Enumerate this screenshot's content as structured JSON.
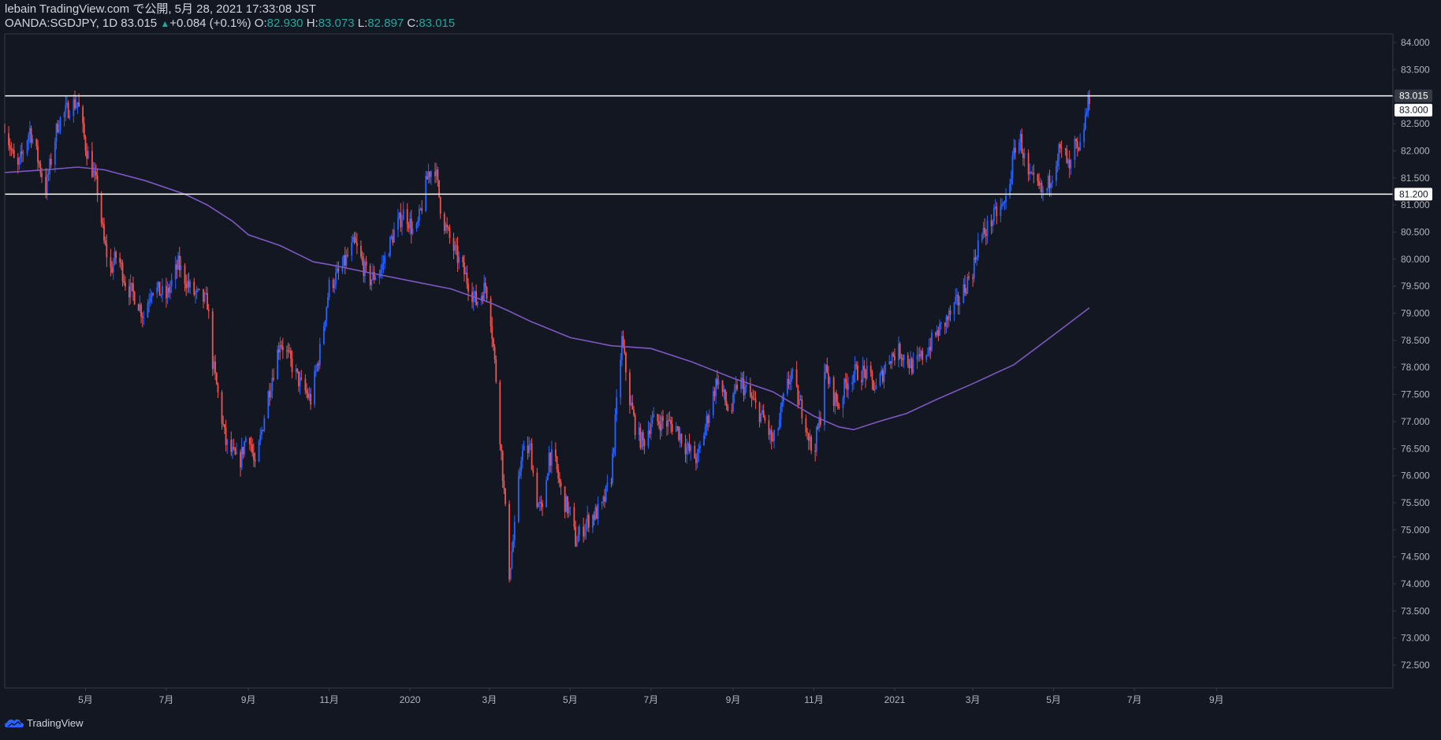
{
  "header": {
    "published": "lebain TradingView.com で公開, 5月 28, 2021 17:33:08 JST",
    "symbol": "OANDA:SGDJPY, 1D 83.015",
    "change_arrow": "▲",
    "change": "+0.084 (+0.1%)",
    "open_label": "O:",
    "open": "82.930",
    "high_label": "H:",
    "high": "83.073",
    "low_label": "L:",
    "low": "82.897",
    "close_label": "C:",
    "close": "83.015"
  },
  "footer": {
    "logo_icon": "tradingview-cloud-icon",
    "brand": "TradingView"
  },
  "colors": {
    "background": "#131722",
    "up": "#2962ff",
    "down": "#ef5350",
    "ma": "#7e57c2",
    "hline": "#ffffff",
    "axis_text": "#b2b5be"
  },
  "chart_data": {
    "type": "candlestick",
    "symbol": "OANDA:SGDJPY",
    "timeframe": "1D",
    "ylim": [
      72.2,
      84.3
    ],
    "y_ticks": [
      "84.000",
      "83.500",
      "83.000",
      "82.500",
      "82.000",
      "81.500",
      "81.000",
      "80.500",
      "80.000",
      "79.500",
      "79.000",
      "78.500",
      "78.000",
      "77.500",
      "77.000",
      "76.500",
      "76.000",
      "75.500",
      "75.000",
      "74.500",
      "74.000",
      "73.500",
      "73.000",
      "72.500"
    ],
    "x_ticks": [
      "5月",
      "7月",
      "9月",
      "11月",
      "2020",
      "3月",
      "5月",
      "7月",
      "9月",
      "11月",
      "2021",
      "3月",
      "5月",
      "7月",
      "9月"
    ],
    "horizontal_lines": [
      83.015,
      81.2
    ],
    "price_labels": [
      "83.015",
      "83.000",
      "81.200"
    ],
    "price_path": [
      [
        "2019-03-01",
        82.5
      ],
      [
        "2019-03-10",
        81.6
      ],
      [
        "2019-03-20",
        82.4
      ],
      [
        "2019-04-01",
        81.3
      ],
      [
        "2019-04-10",
        82.5
      ],
      [
        "2019-04-20",
        82.85
      ],
      [
        "2019-04-25",
        82.9
      ],
      [
        "2019-05-01",
        82.1
      ],
      [
        "2019-05-10",
        81.3
      ],
      [
        "2019-05-15",
        80.3
      ],
      [
        "2019-05-20",
        79.8
      ],
      [
        "2019-05-25",
        80.1
      ],
      [
        "2019-06-01",
        79.5
      ],
      [
        "2019-06-08",
        79.3
      ],
      [
        "2019-06-14",
        78.95
      ],
      [
        "2019-06-20",
        79.5
      ],
      [
        "2019-07-01",
        79.3
      ],
      [
        "2019-07-10",
        79.9
      ],
      [
        "2019-07-20",
        79.4
      ],
      [
        "2019-08-01",
        79.2
      ],
      [
        "2019-08-05",
        78.1
      ],
      [
        "2019-08-15",
        76.6
      ],
      [
        "2019-08-25",
        76.2
      ],
      [
        "2019-09-01",
        76.9
      ],
      [
        "2019-09-06",
        76.1
      ],
      [
        "2019-09-15",
        77.4
      ],
      [
        "2019-09-25",
        78.5
      ],
      [
        "2019-10-01",
        78.2
      ],
      [
        "2019-10-10",
        77.7
      ],
      [
        "2019-10-18",
        77.4
      ],
      [
        "2019-10-25",
        78.3
      ],
      [
        "2019-11-01",
        79.5
      ],
      [
        "2019-11-10",
        79.8
      ],
      [
        "2019-11-20",
        80.3
      ],
      [
        "2019-12-01",
        79.6
      ],
      [
        "2019-12-10",
        79.8
      ],
      [
        "2019-12-20",
        80.5
      ],
      [
        "2019-12-28",
        80.9
      ],
      [
        "2020-01-05",
        80.4
      ],
      [
        "2020-01-15",
        81.6
      ],
      [
        "2020-01-20",
        81.7
      ],
      [
        "2020-01-25",
        80.8
      ],
      [
        "2020-02-01",
        80.3
      ],
      [
        "2020-02-10",
        79.8
      ],
      [
        "2020-02-20",
        79.2
      ],
      [
        "2020-02-27",
        79.5
      ],
      [
        "2020-03-01",
        79.2
      ],
      [
        "2020-03-06",
        77.8
      ],
      [
        "2020-03-12",
        75.7
      ],
      [
        "2020-03-16",
        74.2
      ],
      [
        "2020-03-20",
        75.0
      ],
      [
        "2020-03-25",
        76.4
      ],
      [
        "2020-04-01",
        76.5
      ],
      [
        "2020-04-05",
        75.6
      ],
      [
        "2020-04-10",
        75.3
      ],
      [
        "2020-04-15",
        76.4
      ],
      [
        "2020-04-20",
        76.2
      ],
      [
        "2020-04-25",
        75.6
      ],
      [
        "2020-05-01",
        75.3
      ],
      [
        "2020-05-05",
        74.8
      ],
      [
        "2020-05-15",
        75.2
      ],
      [
        "2020-05-25",
        75.4
      ],
      [
        "2020-06-01",
        76.0
      ],
      [
        "2020-06-05",
        77.3
      ],
      [
        "2020-06-09",
        78.5
      ],
      [
        "2020-06-15",
        77.4
      ],
      [
        "2020-06-20",
        76.8
      ],
      [
        "2020-06-25",
        76.6
      ],
      [
        "2020-07-01",
        77.0
      ],
      [
        "2020-07-10",
        77.0
      ],
      [
        "2020-07-20",
        76.9
      ],
      [
        "2020-07-28",
        76.5
      ],
      [
        "2020-08-05",
        76.3
      ],
      [
        "2020-08-15",
        77.3
      ],
      [
        "2020-08-20",
        77.8
      ],
      [
        "2020-08-30",
        77.1
      ],
      [
        "2020-09-05",
        77.8
      ],
      [
        "2020-09-15",
        77.4
      ],
      [
        "2020-09-25",
        77.0
      ],
      [
        "2020-10-01",
        76.6
      ],
      [
        "2020-10-05",
        76.9
      ],
      [
        "2020-10-10",
        77.5
      ],
      [
        "2020-10-15",
        77.9
      ],
      [
        "2020-10-20",
        77.4
      ],
      [
        "2020-10-25",
        77.1
      ],
      [
        "2020-10-30",
        76.5
      ],
      [
        "2020-11-02",
        76.6
      ],
      [
        "2020-11-06",
        77.1
      ],
      [
        "2020-11-09",
        78.0
      ],
      [
        "2020-11-15",
        77.5
      ],
      [
        "2020-11-20",
        77.3
      ],
      [
        "2020-11-25",
        77.7
      ],
      [
        "2020-12-01",
        77.9
      ],
      [
        "2020-12-10",
        77.9
      ],
      [
        "2020-12-18",
        77.6
      ],
      [
        "2020-12-28",
        78.2
      ],
      [
        "2021-01-05",
        78.3
      ],
      [
        "2021-01-15",
        78.0
      ],
      [
        "2021-01-25",
        78.3
      ],
      [
        "2021-02-01",
        78.6
      ],
      [
        "2021-02-10",
        78.9
      ],
      [
        "2021-02-20",
        79.3
      ],
      [
        "2021-02-25",
        79.6
      ],
      [
        "2021-03-01",
        79.8
      ],
      [
        "2021-03-05",
        80.3
      ],
      [
        "2021-03-10",
        80.5
      ],
      [
        "2021-03-20",
        80.9
      ],
      [
        "2021-03-25",
        81.0
      ],
      [
        "2021-03-30",
        81.6
      ],
      [
        "2021-04-02",
        82.1
      ],
      [
        "2021-04-06",
        82.2
      ],
      [
        "2021-04-12",
        81.5
      ],
      [
        "2021-04-20",
        81.3
      ],
      [
        "2021-04-23",
        81.2
      ],
      [
        "2021-04-26",
        81.3
      ],
      [
        "2021-05-01",
        81.7
      ],
      [
        "2021-05-05",
        82.0
      ],
      [
        "2021-05-10",
        81.9
      ],
      [
        "2021-05-13",
        81.6
      ],
      [
        "2021-05-17",
        82.1
      ],
      [
        "2021-05-20",
        81.9
      ],
      [
        "2021-05-25",
        82.6
      ],
      [
        "2021-05-28",
        83.0
      ]
    ],
    "ma_path": [
      [
        "2019-03-01",
        81.6
      ],
      [
        "2019-04-01",
        81.65
      ],
      [
        "2019-04-25",
        81.7
      ],
      [
        "2019-05-15",
        81.65
      ],
      [
        "2019-06-15",
        81.45
      ],
      [
        "2019-07-15",
        81.2
      ],
      [
        "2019-08-01",
        81.0
      ],
      [
        "2019-08-20",
        80.7
      ],
      [
        "2019-09-01",
        80.45
      ],
      [
        "2019-09-25",
        80.25
      ],
      [
        "2019-10-20",
        79.95
      ],
      [
        "2019-11-01",
        79.9
      ],
      [
        "2019-12-01",
        79.75
      ],
      [
        "2020-01-01",
        79.6
      ],
      [
        "2020-02-01",
        79.45
      ],
      [
        "2020-03-01",
        79.2
      ],
      [
        "2020-03-15",
        79.05
      ],
      [
        "2020-04-01",
        78.85
      ],
      [
        "2020-05-01",
        78.55
      ],
      [
        "2020-06-01",
        78.4
      ],
      [
        "2020-07-01",
        78.35
      ],
      [
        "2020-08-01",
        78.1
      ],
      [
        "2020-09-01",
        77.8
      ],
      [
        "2020-10-01",
        77.55
      ],
      [
        "2020-11-01",
        77.1
      ],
      [
        "2020-11-20",
        76.9
      ],
      [
        "2020-12-01",
        76.85
      ],
      [
        "2020-12-20",
        77.0
      ],
      [
        "2021-01-10",
        77.15
      ],
      [
        "2021-02-01",
        77.4
      ],
      [
        "2021-03-01",
        77.7
      ],
      [
        "2021-04-01",
        78.05
      ],
      [
        "2021-05-01",
        78.6
      ],
      [
        "2021-05-28",
        79.1
      ]
    ]
  }
}
